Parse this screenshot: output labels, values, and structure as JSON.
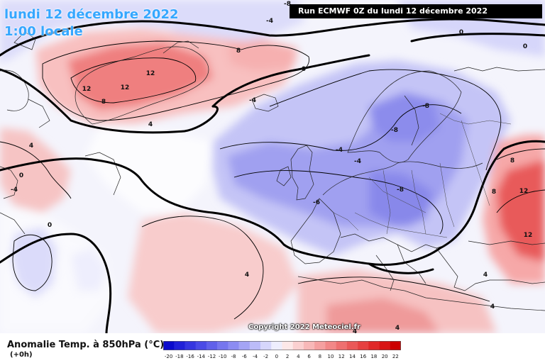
{
  "title": {
    "line1": "lundi 12 décembre 2022",
    "line2": "1:00 locale"
  },
  "run_info": "Run ECMWF 0Z du lundi 12 décembre 2022",
  "copyright": "Copyright 2022 Meteociel.fr",
  "legend": {
    "title": "Anomalie Temp. à 850hPa (°C)",
    "subtitle": "(+0h)",
    "ticks": [
      "-20",
      "-18",
      "-16",
      "-14",
      "-12",
      "-10",
      "-8",
      "-6",
      "-4",
      "-2",
      "0",
      "2",
      "4",
      "6",
      "8",
      "10",
      "12",
      "14",
      "16",
      "18",
      "20",
      "22"
    ],
    "colors": [
      "#0a0acc",
      "#2020d8",
      "#3535e0",
      "#4a4ae6",
      "#6060ea",
      "#7676ee",
      "#8c8cf2",
      "#a4a4f5",
      "#bcbcf8",
      "#d6d6fb",
      "#eeeefd",
      "#fde8e8",
      "#fbd0d0",
      "#f8b8b8",
      "#f5a0a0",
      "#f28888",
      "#ee7070",
      "#ea5858",
      "#e64040",
      "#e02828",
      "#d81414",
      "#cc0000"
    ]
  },
  "contour_labels": [
    {
      "text": "-8"
    },
    {
      "text": "-4"
    },
    {
      "text": "0"
    },
    {
      "text": "0"
    },
    {
      "text": "0"
    },
    {
      "text": "8"
    },
    {
      "text": "12"
    },
    {
      "text": "12"
    },
    {
      "text": "12"
    },
    {
      "text": "8"
    },
    {
      "text": "4"
    },
    {
      "text": "4"
    },
    {
      "text": "-4"
    },
    {
      "text": "-8"
    },
    {
      "text": "-8"
    },
    {
      "text": "-4"
    },
    {
      "text": "-4"
    },
    {
      "text": "-6"
    },
    {
      "text": "-8"
    },
    {
      "text": "8"
    },
    {
      "text": "8"
    },
    {
      "text": "12"
    },
    {
      "text": "12"
    },
    {
      "text": "4"
    },
    {
      "text": "4"
    },
    {
      "text": "4"
    },
    {
      "text": "0"
    },
    {
      "text": "0"
    },
    {
      "text": "-4"
    },
    {
      "text": "4"
    },
    {
      "text": "4"
    }
  ]
}
